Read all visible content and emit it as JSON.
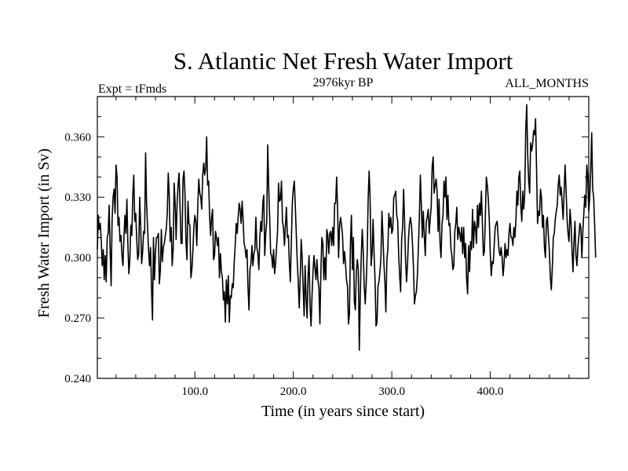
{
  "chart_data": {
    "type": "line",
    "title": "S. Atlantic Net Fresh Water Import",
    "subtitle_left": "Expt = tFmds",
    "subtitle_center": "2976kyr BP",
    "subtitle_right": "ALL_MONTHS",
    "xlabel": "Time (in years since start)",
    "ylabel": "Fresh Water Import (in Sv)",
    "xlim": [
      1,
      500
    ],
    "ylim": [
      0.24,
      0.38
    ],
    "x_ticks": [
      {
        "value": 100,
        "label": "100.0"
      },
      {
        "value": 200,
        "label": "200.0"
      },
      {
        "value": 300,
        "label": "300.0"
      },
      {
        "value": 400,
        "label": "400.0"
      }
    ],
    "y_ticks": [
      {
        "value": 0.24,
        "label": "0.240"
      },
      {
        "value": 0.27,
        "label": "0.270"
      },
      {
        "value": 0.3,
        "label": "0.300"
      },
      {
        "value": 0.33,
        "label": "0.330"
      },
      {
        "value": 0.36,
        "label": "0.360"
      }
    ],
    "series": [
      {
        "name": "Fresh Water Import",
        "x_start": 1,
        "x_step": 1,
        "values": [
          0.304,
          0.321,
          0.314,
          0.317,
          0.308,
          0.296,
          0.304,
          0.289,
          0.301,
          0.288,
          0.31,
          0.312,
          0.326,
          0.304,
          0.286,
          0.319,
          0.33,
          0.334,
          0.322,
          0.346,
          0.34,
          0.316,
          0.32,
          0.308,
          0.311,
          0.301,
          0.296,
          0.31,
          0.321,
          0.312,
          0.329,
          0.307,
          0.292,
          0.299,
          0.316,
          0.311,
          0.331,
          0.341,
          0.318,
          0.322,
          0.309,
          0.299,
          0.302,
          0.33,
          0.316,
          0.297,
          0.303,
          0.313,
          0.312,
          0.352,
          0.327,
          0.315,
          0.304,
          0.296,
          0.305,
          0.285,
          0.269,
          0.31,
          0.289,
          0.302,
          0.31,
          0.31,
          0.312,
          0.287,
          0.294,
          0.314,
          0.298,
          0.305,
          0.307,
          0.311,
          0.314,
          0.322,
          0.342,
          0.331,
          0.308,
          0.315,
          0.296,
          0.304,
          0.337,
          0.327,
          0.309,
          0.327,
          0.336,
          0.342,
          0.325,
          0.307,
          0.307,
          0.339,
          0.343,
          0.332,
          0.308,
          0.299,
          0.328,
          0.317,
          0.316,
          0.29,
          0.294,
          0.303,
          0.315,
          0.321,
          0.318,
          0.306,
          0.326,
          0.339,
          0.332,
          0.33,
          0.324,
          0.341,
          0.347,
          0.341,
          0.344,
          0.36,
          0.336,
          0.338,
          0.321,
          0.311,
          0.32,
          0.324,
          0.299,
          0.301,
          0.313,
          0.31,
          0.306,
          0.31,
          0.29,
          0.302,
          0.293,
          0.29,
          0.279,
          0.283,
          0.268,
          0.289,
          0.277,
          0.291,
          0.268,
          0.281,
          0.28,
          0.287,
          0.285,
          0.298,
          0.306,
          0.317,
          0.312,
          0.32,
          0.327,
          0.324,
          0.317,
          0.328,
          0.319,
          0.307,
          0.305,
          0.3,
          0.304,
          0.285,
          0.274,
          0.294,
          0.297,
          0.306,
          0.296,
          0.302,
          0.304,
          0.32,
          0.305,
          0.302,
          0.294,
          0.31,
          0.318,
          0.313,
          0.327,
          0.331,
          0.301,
          0.312,
          0.318,
          0.356,
          0.335,
          0.32,
          0.302,
          0.301,
          0.295,
          0.304,
          0.292,
          0.297,
          0.305,
          0.313,
          0.337,
          0.328,
          0.329,
          0.338,
          0.318,
          0.315,
          0.306,
          0.316,
          0.325,
          0.31,
          0.311,
          0.297,
          0.288,
          0.308,
          0.327,
          0.334,
          0.338,
          0.326,
          0.312,
          0.298,
          0.288,
          0.275,
          0.29,
          0.309,
          0.3,
          0.285,
          0.271,
          0.296,
          0.28,
          0.27,
          0.291,
          0.301,
          0.276,
          0.266,
          0.281,
          0.293,
          0.301,
          0.295,
          0.289,
          0.299,
          0.289,
          0.285,
          0.267,
          0.293,
          0.31,
          0.307,
          0.289,
          0.3,
          0.289,
          0.314,
          0.311,
          0.302,
          0.312,
          0.313,
          0.306,
          0.315,
          0.306,
          0.327,
          0.327,
          0.34,
          0.323,
          0.3,
          0.316,
          0.32,
          0.316,
          0.311,
          0.297,
          0.303,
          0.297,
          0.289,
          0.286,
          0.267,
          0.272,
          0.307,
          0.321,
          0.294,
          0.31,
          0.278,
          0.274,
          0.293,
          0.299,
          0.294,
          0.254,
          0.281,
          0.301,
          0.314,
          0.303,
          0.286,
          0.277,
          0.287,
          0.302,
          0.329,
          0.343,
          0.329,
          0.296,
          0.302,
          0.319,
          0.302,
          0.289,
          0.266,
          0.268,
          0.286,
          0.288,
          0.293,
          0.3,
          0.323,
          0.311,
          0.297,
          0.288,
          0.273,
          0.299,
          0.304,
          0.322,
          0.315,
          0.32,
          0.312,
          0.314,
          0.33,
          0.331,
          0.333,
          0.321,
          0.318,
          0.301,
          0.291,
          0.283,
          0.309,
          0.315,
          0.334,
          0.318,
          0.298,
          0.288,
          0.297,
          0.31,
          0.317,
          0.32,
          0.316,
          0.307,
          0.295,
          0.277,
          0.281,
          0.283,
          0.291,
          0.305,
          0.32,
          0.341,
          0.326,
          0.31,
          0.323,
          0.311,
          0.301,
          0.318,
          0.32,
          0.324,
          0.312,
          0.319,
          0.325,
          0.345,
          0.35,
          0.332,
          0.336,
          0.339,
          0.333,
          0.313,
          0.329,
          0.307,
          0.3,
          0.317,
          0.321,
          0.338,
          0.33,
          0.34,
          0.319,
          0.331,
          0.316,
          0.317,
          0.305,
          0.301,
          0.294,
          0.296,
          0.313,
          0.317,
          0.325,
          0.309,
          0.315,
          0.312,
          0.308,
          0.315,
          0.302,
          0.315,
          0.3,
          0.307,
          0.289,
          0.282,
          0.306,
          0.293,
          0.308,
          0.304,
          0.324,
          0.305,
          0.318,
          0.315,
          0.307,
          0.326,
          0.315,
          0.327,
          0.321,
          0.333,
          0.317,
          0.301,
          0.303,
          0.32,
          0.34,
          0.336,
          0.329,
          0.319,
          0.302,
          0.291,
          0.298,
          0.297,
          0.306,
          0.315,
          0.317,
          0.318,
          0.31,
          0.303,
          0.301,
          0.305,
          0.3,
          0.291,
          0.297,
          0.307,
          0.3,
          0.304,
          0.301,
          0.312,
          0.317,
          0.31,
          0.31,
          0.306,
          0.315,
          0.31,
          0.318,
          0.333,
          0.326,
          0.34,
          0.343,
          0.326,
          0.318,
          0.333,
          0.324,
          0.332,
          0.363,
          0.376,
          0.351,
          0.338,
          0.332,
          0.357,
          0.353,
          0.356,
          0.363,
          0.361,
          0.369,
          0.344,
          0.317,
          0.323,
          0.321,
          0.334,
          0.33,
          0.315,
          0.321,
          0.305,
          0.3,
          0.318,
          0.32,
          0.311,
          0.303,
          0.29,
          0.284,
          0.295,
          0.31,
          0.312,
          0.319,
          0.323,
          0.326,
          0.336,
          0.341,
          0.331,
          0.335,
          0.327,
          0.319,
          0.333,
          0.346,
          0.333,
          0.319,
          0.312,
          0.308,
          0.324,
          0.317,
          0.304,
          0.293,
          0.308,
          0.318,
          0.301,
          0.296,
          0.305,
          0.311,
          0.317,
          0.315,
          0.3,
          0.313,
          0.322,
          0.331,
          0.325,
          0.346,
          0.34,
          0.323,
          0.33,
          0.343,
          0.362,
          0.334,
          0.33,
          0.316,
          0.3
        ]
      }
    ]
  }
}
